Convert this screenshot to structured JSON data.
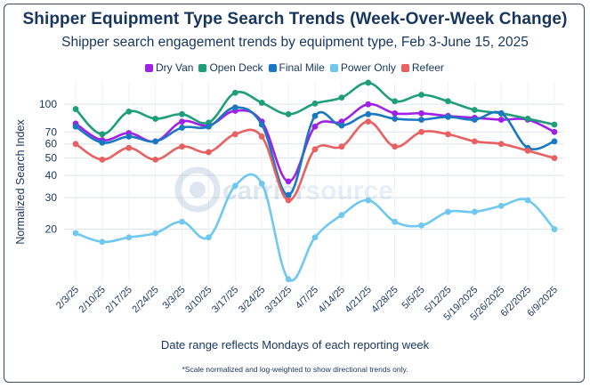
{
  "title": "Shipper Equipment Type Search Trends (Week-Over-Week Change)",
  "subtitle": "Shipper search engagement trends by equipment type, Feb 3-June 15, 2025",
  "footer_label": "Date range reflects Mondays of each reporting week",
  "footnote": "*Scale normalized and log-weighted to show directional trends only.",
  "watermark": {
    "part1": "carrier",
    "part2": "source"
  },
  "chart_data": {
    "type": "line",
    "title": "Shipper Equipment Type Search Trends (Week-Over-Week Change)",
    "ylabel": "Normalized Search Index",
    "xlabel": "Date range reflects Mondays of each reporting week",
    "yscale": "log",
    "ylim": [
      10,
      135
    ],
    "yticks": [
      20,
      30,
      40,
      50,
      60,
      70,
      100
    ],
    "legend_position": "top-center",
    "grid": true,
    "categories": [
      "2/3/25",
      "2/10/25",
      "2/17/25",
      "2/24/25",
      "3/3/25",
      "3/10/25",
      "3/17/25",
      "3/24/25",
      "3/31/25",
      "4/7/25",
      "4/14/25",
      "4/21/25",
      "4/28/25",
      "5/5/25",
      "5/12/25",
      "5/19/2025",
      "5/26/2025",
      "6/2/2025",
      "6/9/2025"
    ],
    "series": [
      {
        "name": "Dry Van",
        "color": "#a020e8",
        "values": [
          78,
          63,
          69,
          62,
          80,
          76,
          92,
          80,
          37,
          75,
          80,
          100,
          89,
          89,
          86,
          84,
          82,
          82,
          70
        ]
      },
      {
        "name": "Open Deck",
        "color": "#1e9e7a",
        "values": [
          94,
          68,
          91,
          83,
          88,
          79,
          116,
          102,
          88,
          101,
          109,
          132,
          104,
          113,
          104,
          93,
          89,
          83,
          77
        ]
      },
      {
        "name": "Final Mile",
        "color": "#1878c2",
        "values": [
          75,
          61,
          66,
          62,
          74,
          75,
          96,
          77,
          31,
          86,
          76,
          88,
          83,
          82,
          85,
          82,
          89,
          57,
          62
        ]
      },
      {
        "name": "Power Only",
        "color": "#6ec8f0",
        "values": [
          19,
          17,
          18,
          19,
          22,
          18,
          35,
          36,
          10.5,
          18,
          24,
          29,
          22,
          21,
          25,
          25,
          27,
          29,
          20
        ]
      },
      {
        "name": "Refeer",
        "color": "#e86060",
        "values": [
          60,
          49,
          57,
          49,
          58,
          54,
          68,
          66,
          29,
          56,
          58,
          80,
          58,
          70,
          68,
          62,
          60,
          55,
          50
        ]
      }
    ]
  }
}
